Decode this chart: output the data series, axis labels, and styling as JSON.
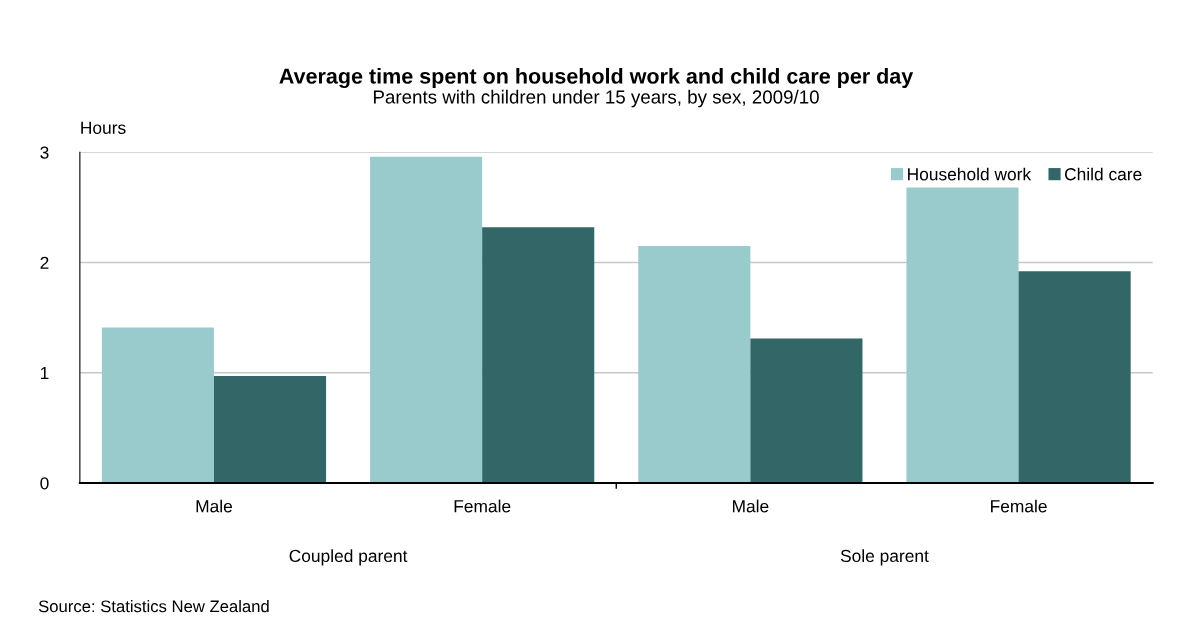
{
  "chart_data": {
    "type": "bar",
    "title": "Average time spent on household work and child care per day",
    "subtitle": "Parents with children under 15 years, by sex, 2009/10",
    "ylabel": "Hours",
    "categories": [
      "Male",
      "Female",
      "Male",
      "Female"
    ],
    "series": [
      {
        "name": "Household work",
        "color": "#9acbcc",
        "values": [
          1.41,
          2.96,
          2.15,
          2.68
        ]
      },
      {
        "name": "Child care",
        "color": "#336666",
        "values": [
          0.97,
          2.32,
          1.31,
          1.92
        ]
      }
    ],
    "ylim": [
      0,
      3
    ],
    "yticks": [
      0,
      1,
      2,
      3
    ],
    "grid": "y",
    "legend": "top right",
    "annotations": [
      "Coupled parent",
      "Sole parent",
      "Source: Statistics New Zealand"
    ]
  }
}
